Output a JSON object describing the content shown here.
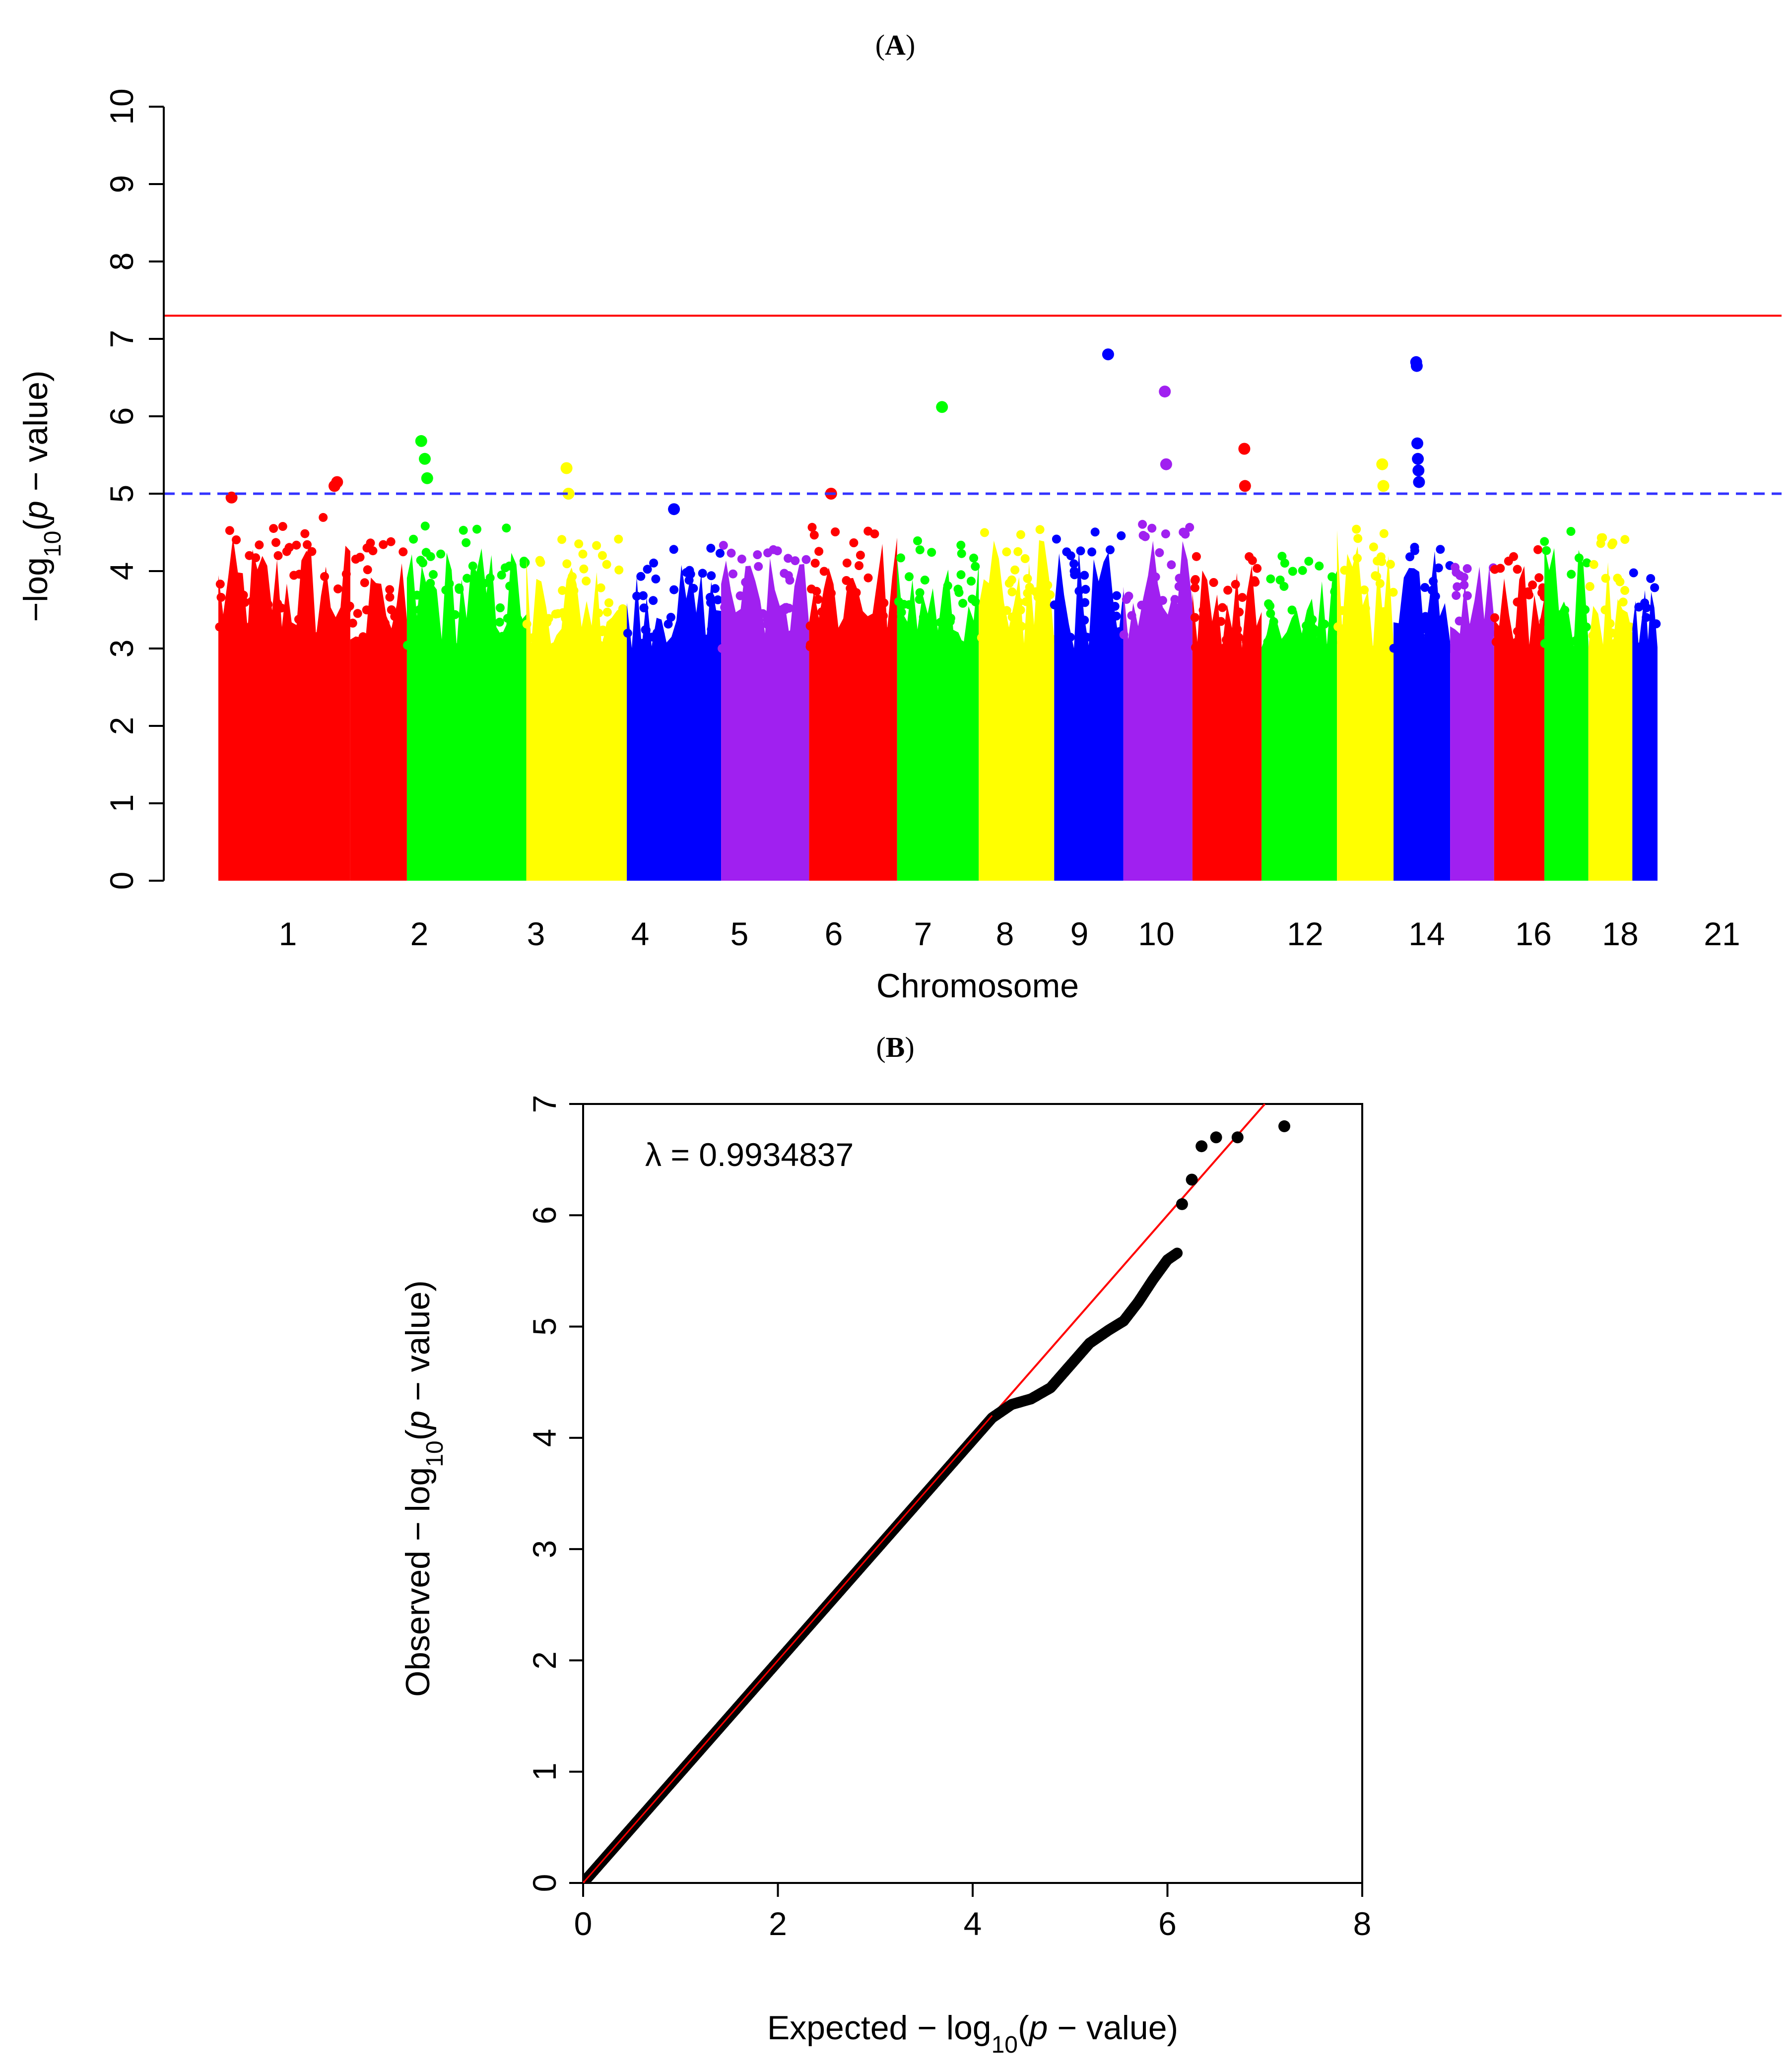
{
  "panels": {
    "a_label": "A",
    "b_label": "B"
  },
  "colors": {
    "chromosome_cycle": [
      "#FF0000",
      "#00FF00",
      "#FFFF00",
      "#0000FF",
      "#A020F0"
    ],
    "genomewide_line": "#FF0000",
    "suggestive_line": "#3333FF",
    "qq_points": "#000000",
    "qq_diagonal": "#FF0000"
  },
  "chart_data": [
    {
      "type": "scatter",
      "subtype": "manhattan",
      "xlabel": "Chromosome",
      "ylabel_prefix": "−log",
      "ylabel_sub": "10",
      "ylabel_open": "(",
      "ylabel_p": "p",
      "ylabel_suffix": " − value)",
      "ylim": [
        0,
        10
      ],
      "yticks": [
        "0",
        "1",
        "2",
        "3",
        "4",
        "5",
        "6",
        "7",
        "8",
        "9",
        "10"
      ],
      "x_tick_labels": [
        "1",
        "2",
        "3",
        "4",
        "5",
        "6",
        "7",
        "8",
        "9",
        "10",
        "12",
        "14",
        "16",
        "18",
        "21"
      ],
      "genomewide_threshold": 7.3,
      "suggestive_threshold": 5.0,
      "chromosomes": [
        {
          "chr": 1,
          "size": 21,
          "color_index": 0,
          "base_top": 4.7
        },
        {
          "chr": 1.5,
          "size": 9,
          "color_index": 0,
          "base_top": 4.4
        },
        {
          "chr": 2,
          "size": 19,
          "color_index": 1,
          "base_top": 4.6
        },
        {
          "chr": 3,
          "size": 16,
          "color_index": 2,
          "base_top": 4.5
        },
        {
          "chr": 4,
          "size": 15,
          "color_index": 3,
          "base_top": 4.3
        },
        {
          "chr": 5,
          "size": 14,
          "color_index": 4,
          "base_top": 4.4
        },
        {
          "chr": 6,
          "size": 14,
          "color_index": 0,
          "base_top": 4.8
        },
        {
          "chr": 7,
          "size": 13,
          "color_index": 1,
          "base_top": 4.4
        },
        {
          "chr": 8,
          "size": 12,
          "color_index": 2,
          "base_top": 4.7
        },
        {
          "chr": 9,
          "size": 11,
          "color_index": 3,
          "base_top": 4.6
        },
        {
          "chr": 10,
          "size": 11,
          "color_index": 4,
          "base_top": 4.7
        },
        {
          "chr": 11,
          "size": 11,
          "color_index": 0,
          "base_top": 4.3
        },
        {
          "chr": 12,
          "size": 12,
          "color_index": 1,
          "base_top": 4.2
        },
        {
          "chr": 13,
          "size": 9,
          "color_index": 2,
          "base_top": 4.8
        },
        {
          "chr": 14,
          "size": 9,
          "color_index": 3,
          "base_top": 4.5
        },
        {
          "chr": 15,
          "size": 7,
          "color_index": 4,
          "base_top": 4.3
        },
        {
          "chr": 16,
          "size": 8,
          "color_index": 0,
          "base_top": 4.4
        },
        {
          "chr": 17,
          "size": 7,
          "color_index": 1,
          "base_top": 4.6
        },
        {
          "chr": 18,
          "size": 7,
          "color_index": 2,
          "base_top": 4.5
        },
        {
          "chr": 19,
          "size": 4,
          "color_index": 3,
          "base_top": 4.0
        }
      ],
      "highlight_points": [
        {
          "chr_index": 0,
          "pos": 0.9,
          "y": 5.15
        },
        {
          "chr_index": 0,
          "pos": 0.88,
          "y": 5.1
        },
        {
          "chr_index": 2,
          "pos": 0.12,
          "y": 5.68
        },
        {
          "chr_index": 2,
          "pos": 0.15,
          "y": 5.45
        },
        {
          "chr_index": 2,
          "pos": 0.17,
          "y": 5.2
        },
        {
          "chr_index": 3,
          "pos": 0.4,
          "y": 5.33
        },
        {
          "chr_index": 3,
          "pos": 0.42,
          "y": 5.0
        },
        {
          "chr_index": 7,
          "pos": 0.55,
          "y": 6.12
        },
        {
          "chr_index": 9,
          "pos": 0.78,
          "y": 6.8
        },
        {
          "chr_index": 10,
          "pos": 0.6,
          "y": 6.32
        },
        {
          "chr_index": 10,
          "pos": 0.62,
          "y": 5.38
        },
        {
          "chr_index": 11,
          "pos": 0.75,
          "y": 5.58
        },
        {
          "chr_index": 11,
          "pos": 0.76,
          "y": 5.1
        },
        {
          "chr_index": 13,
          "pos": 0.8,
          "y": 5.38
        },
        {
          "chr_index": 13,
          "pos": 0.82,
          "y": 5.1
        },
        {
          "chr_index": 14,
          "pos": 0.4,
          "y": 6.7
        },
        {
          "chr_index": 14,
          "pos": 0.41,
          "y": 6.65
        },
        {
          "chr_index": 14,
          "pos": 0.42,
          "y": 5.65
        },
        {
          "chr_index": 14,
          "pos": 0.43,
          "y": 5.45
        },
        {
          "chr_index": 14,
          "pos": 0.44,
          "y": 5.3
        },
        {
          "chr_index": 14,
          "pos": 0.45,
          "y": 5.15
        },
        {
          "chr_index": 6,
          "pos": 0.25,
          "y": 5.0
        },
        {
          "chr_index": 0,
          "pos": 0.1,
          "y": 4.95
        },
        {
          "chr_index": 4,
          "pos": 0.5,
          "y": 4.8
        }
      ]
    },
    {
      "type": "scatter",
      "subtype": "qq",
      "xlabel_prefix": "Expected − log",
      "xlabel_sub": "10",
      "xlabel_open": "(",
      "xlabel_p": "p",
      "xlabel_suffix": " − value)",
      "ylabel_prefix": "Observed − log",
      "ylabel_sub": "10",
      "ylabel_open": "(",
      "ylabel_p": "p",
      "ylabel_suffix": " − value)",
      "xlim": [
        0,
        8
      ],
      "ylim": [
        0,
        7
      ],
      "xticks": [
        "0",
        "2",
        "4",
        "6",
        "8"
      ],
      "yticks": [
        "0",
        "1",
        "2",
        "3",
        "4",
        "5",
        "6",
        "7"
      ],
      "lambda_text": "λ = 0.9934837",
      "diagonal": {
        "from": [
          0,
          0
        ],
        "to": [
          7,
          7
        ]
      },
      "curve_points": [
        [
          0.05,
          0.05
        ],
        [
          4.2,
          4.18
        ],
        [
          4.4,
          4.3
        ],
        [
          4.6,
          4.35
        ],
        [
          4.8,
          4.45
        ],
        [
          5.0,
          4.65
        ],
        [
          5.2,
          4.85
        ],
        [
          5.4,
          4.97
        ],
        [
          5.55,
          5.05
        ],
        [
          5.7,
          5.22
        ],
        [
          5.85,
          5.42
        ],
        [
          6.0,
          5.6
        ],
        [
          6.1,
          5.66
        ]
      ],
      "top_points": [
        [
          6.15,
          6.1
        ],
        [
          6.25,
          6.32
        ],
        [
          6.35,
          6.62
        ],
        [
          6.5,
          6.7
        ],
        [
          6.72,
          6.7
        ],
        [
          7.2,
          6.8
        ]
      ]
    }
  ]
}
